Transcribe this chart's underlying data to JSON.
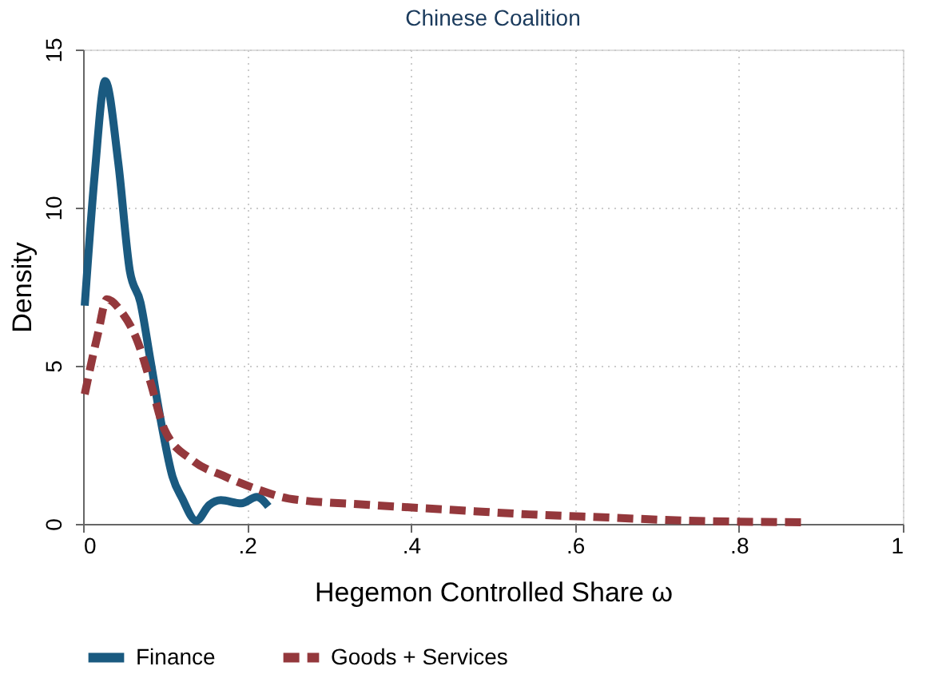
{
  "chart_data": {
    "type": "line",
    "title": "Chinese Coalition",
    "xlabel": "Hegemon Controlled Share  ω",
    "ylabel": "Density",
    "xlim": [
      0,
      1
    ],
    "ylim": [
      0,
      15
    ],
    "xticks": [
      0,
      {
        "value": 0.2,
        "label": ".2"
      },
      {
        "value": 0.4,
        "label": ".4"
      },
      {
        "value": 0.6,
        "label": ".6"
      },
      {
        "value": 0.8,
        "label": ".8"
      },
      1
    ],
    "yticks": [
      0,
      5,
      10,
      15
    ],
    "grid": true,
    "legend": "bottom",
    "marker": "none",
    "series": [
      {
        "name": "Finance",
        "color": "#1a5a80",
        "line_style": "solid",
        "x": [
          0.002,
          0.014,
          0.027,
          0.043,
          0.057,
          0.07,
          0.082,
          0.096,
          0.109,
          0.121,
          0.138,
          0.154,
          0.168,
          0.193,
          0.212,
          0.226
        ],
        "values": [
          6.9,
          11.0,
          14.0,
          11.4,
          8.0,
          7.0,
          5.2,
          3.1,
          1.5,
          0.8,
          0.1,
          0.6,
          0.75,
          0.65,
          0.85,
          0.55
        ]
      },
      {
        "name": "Goods + Services",
        "color": "#94383c",
        "line_style": "dashed",
        "x": [
          0.002,
          0.018,
          0.029,
          0.047,
          0.066,
          0.082,
          0.099,
          0.134,
          0.173,
          0.212,
          0.251,
          0.349,
          0.446,
          0.544,
          0.641,
          0.739,
          0.883
        ],
        "values": [
          4.1,
          6.0,
          7.1,
          6.7,
          5.8,
          4.5,
          3.0,
          2.0,
          1.5,
          1.1,
          0.8,
          0.6,
          0.45,
          0.3,
          0.2,
          0.1,
          0.05
        ]
      }
    ]
  }
}
